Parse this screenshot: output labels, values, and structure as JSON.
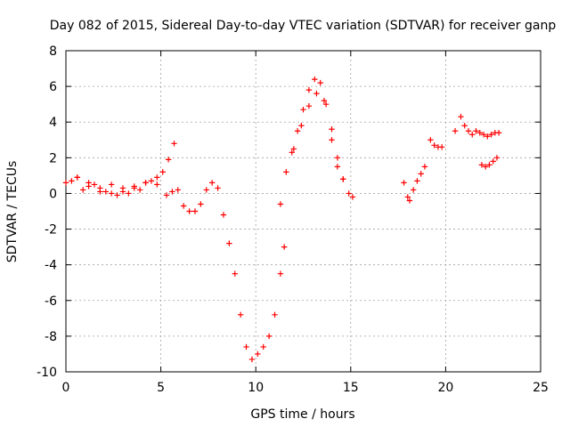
{
  "chart_data": {
    "type": "scatter",
    "title": "Day 082 of 2015, Sidereal Day-to-day VTEC variation (SDTVAR) for receiver ganp",
    "xlabel": "GPS time / hours",
    "ylabel": "SDTVAR / TECUs",
    "xlim": [
      0,
      25
    ],
    "ylim": [
      -10,
      8
    ],
    "xticks": [
      "0",
      "5",
      "10",
      "15",
      "20",
      "25"
    ],
    "yticks": [
      "-10",
      "-8",
      "-6",
      "-4",
      "-2",
      "0",
      "2",
      "4",
      "6",
      "8"
    ],
    "grid": true,
    "marker": "+",
    "series_color": "#ff0000",
    "series": [
      {
        "x": [
          0.0,
          0.3,
          0.6,
          0.9,
          1.2,
          1.5,
          1.8,
          2.1,
          2.4,
          2.7,
          3.0,
          3.3,
          3.6,
          3.9,
          4.2,
          4.5,
          4.8,
          5.1,
          5.4,
          5.7
        ],
        "y": [
          0.6,
          0.7,
          0.9,
          0.2,
          0.6,
          0.5,
          0.3,
          0.1,
          0.5,
          -0.1,
          0.3,
          0.0,
          0.4,
          0.2,
          0.6,
          0.7,
          0.9,
          1.2,
          1.9,
          2.8
        ]
      },
      {
        "x": [
          0.6,
          1.2,
          1.8,
          2.4,
          3.0,
          3.6,
          4.2,
          4.8
        ],
        "y": [
          0.9,
          0.4,
          0.1,
          0.0,
          0.1,
          0.3,
          0.6,
          0.5
        ]
      },
      {
        "x": [
          5.3,
          5.6,
          5.9,
          6.2,
          6.5,
          6.8,
          7.1,
          7.4,
          7.7,
          8.0,
          8.3,
          8.6,
          8.9,
          9.2,
          9.5,
          9.8,
          10.1,
          10.4,
          10.7,
          11.0,
          11.3,
          11.5
        ],
        "y": [
          -0.1,
          0.1,
          0.2,
          -0.7,
          -1.0,
          -1.0,
          -0.6,
          0.2,
          0.6,
          0.3,
          -1.2,
          -2.8,
          -4.5,
          -6.8,
          -8.6,
          -9.3,
          -9.0,
          -8.6,
          -8.0,
          -6.8,
          -4.5,
          -3.0
        ]
      },
      {
        "x": [
          11.3,
          11.6,
          11.9,
          12.2,
          12.5,
          12.8,
          13.1,
          13.4,
          13.7,
          14.0,
          14.3,
          14.6,
          14.9,
          15.1
        ],
        "y": [
          -0.6,
          1.2,
          2.3,
          3.5,
          4.7,
          5.8,
          6.4,
          6.2,
          5.0,
          3.0,
          1.5,
          0.8,
          0.0,
          -0.2
        ]
      },
      {
        "x": [
          12.0,
          12.4,
          12.8,
          13.2,
          13.6,
          14.0,
          14.3,
          14.6
        ],
        "y": [
          2.5,
          3.8,
          4.9,
          5.6,
          5.2,
          3.6,
          2.0,
          0.8
        ]
      },
      {
        "x": [
          17.8,
          18.0,
          18.1,
          18.3,
          18.5,
          18.7,
          18.9
        ],
        "y": [
          0.6,
          -0.2,
          -0.4,
          0.2,
          0.7,
          1.1,
          1.5
        ]
      },
      {
        "x": [
          19.2,
          19.4,
          19.6,
          19.8
        ],
        "y": [
          3.0,
          2.7,
          2.6,
          2.6
        ]
      },
      {
        "x": [
          20.5,
          20.8,
          21.0,
          21.2,
          21.4,
          21.6,
          21.8,
          22.0,
          22.2,
          22.4,
          22.6,
          22.8
        ],
        "y": [
          3.5,
          4.3,
          3.8,
          3.5,
          3.3,
          3.5,
          3.4,
          3.3,
          3.2,
          3.3,
          3.4,
          3.4
        ]
      },
      {
        "x": [
          21.9,
          22.1,
          22.3,
          22.5,
          22.7
        ],
        "y": [
          1.6,
          1.5,
          1.6,
          1.8,
          2.0
        ]
      }
    ]
  }
}
